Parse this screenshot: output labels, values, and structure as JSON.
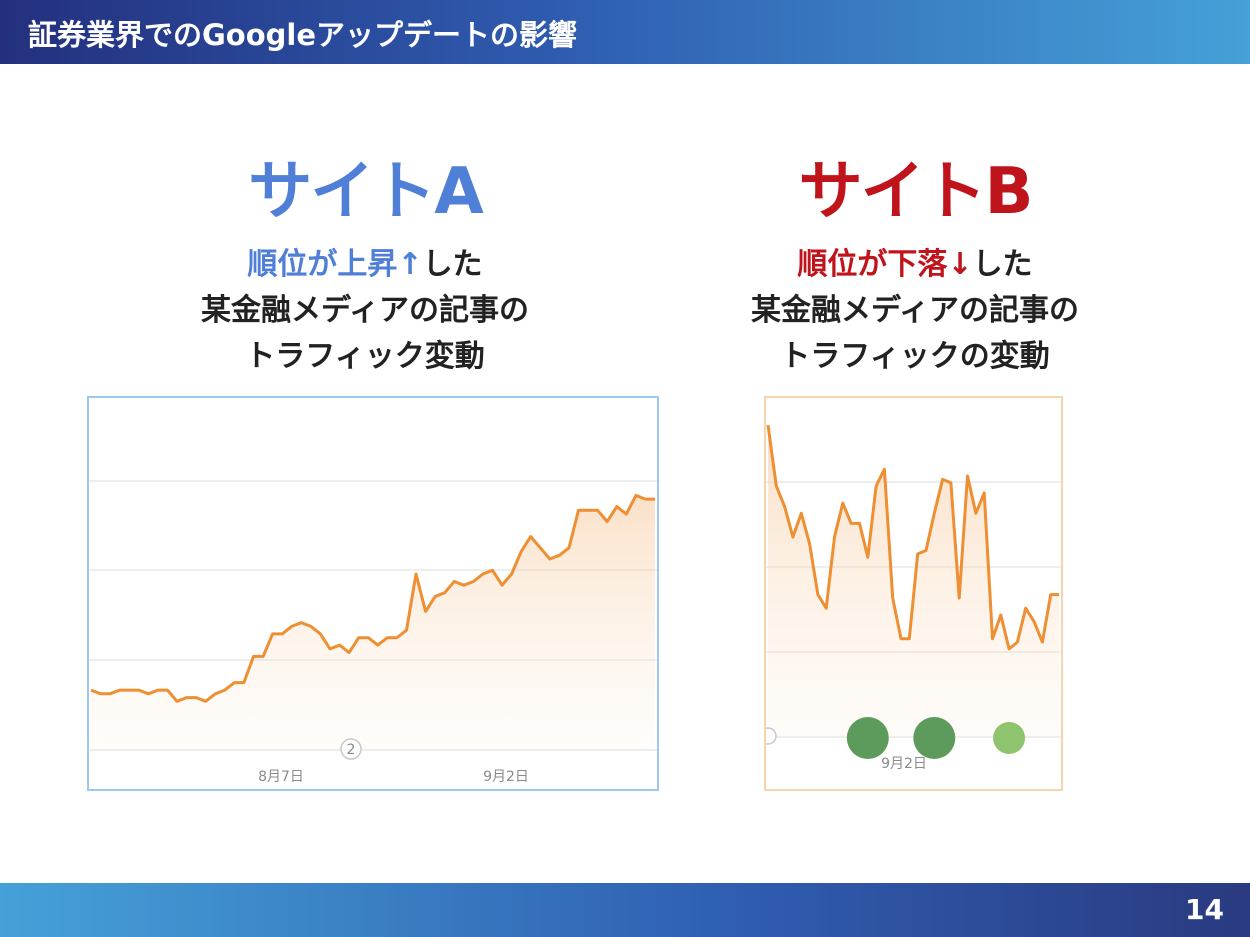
{
  "header": {
    "title": "証券業界でのGoogleアップデートの影響"
  },
  "footer": {
    "page_number": "14"
  },
  "site_a": {
    "name": "サイトA",
    "caption": {
      "highlight": "順位が上昇↑",
      "rest1": "した",
      "line2": "某金融メディアの記事の",
      "line3": "トラフィック変動"
    }
  },
  "site_b": {
    "name": "サイトB",
    "caption": {
      "highlight": "順位が下落↓",
      "rest1": "した",
      "line2": "某金融メディアの記事の",
      "line3": "トラフィックの変動"
    }
  },
  "colors": {
    "line": "#ed8f32",
    "site_a": "#4f7fd6",
    "site_b": "#c0141c",
    "marker_dark": "#5d9b5c",
    "marker_light": "#8fc46e"
  },
  "chart_data": [
    {
      "type": "area",
      "x_tick_labels": [
        "8月7日",
        "9月2日"
      ],
      "annotation_labels": [
        "2"
      ],
      "values": [
        92,
        91,
        91,
        92,
        92,
        92,
        91,
        92,
        92,
        89,
        90,
        90,
        89,
        91,
        92,
        94,
        94,
        101,
        101,
        107,
        107,
        109,
        110,
        109,
        107,
        103,
        104,
        102,
        106,
        106,
        104,
        106,
        106,
        108,
        123,
        113,
        117,
        118,
        121,
        120,
        121,
        123,
        124,
        120,
        123,
        129,
        133,
        130,
        127,
        128,
        130,
        140,
        140,
        140,
        137,
        141,
        139,
        144,
        143,
        143
      ],
      "ylim": [
        76,
        170
      ],
      "grid": true
    },
    {
      "type": "area",
      "x_tick_labels": [
        "9月2日"
      ],
      "values": [
        147,
        129,
        123,
        114,
        121,
        112,
        97,
        93,
        114,
        124,
        118,
        118,
        108,
        129,
        134,
        96,
        84,
        84,
        109,
        110,
        121,
        131,
        130,
        96,
        132,
        121,
        127,
        84,
        91,
        81,
        83,
        93,
        89,
        83,
        97,
        97
      ],
      "ylim": [
        55,
        155
      ],
      "grid": true,
      "markers": [
        {
          "x_index": 12,
          "size": "large",
          "tone": "dark"
        },
        {
          "x_index": 20,
          "size": "large",
          "tone": "dark"
        },
        {
          "x_index": 29,
          "size": "small",
          "tone": "light"
        }
      ]
    }
  ]
}
